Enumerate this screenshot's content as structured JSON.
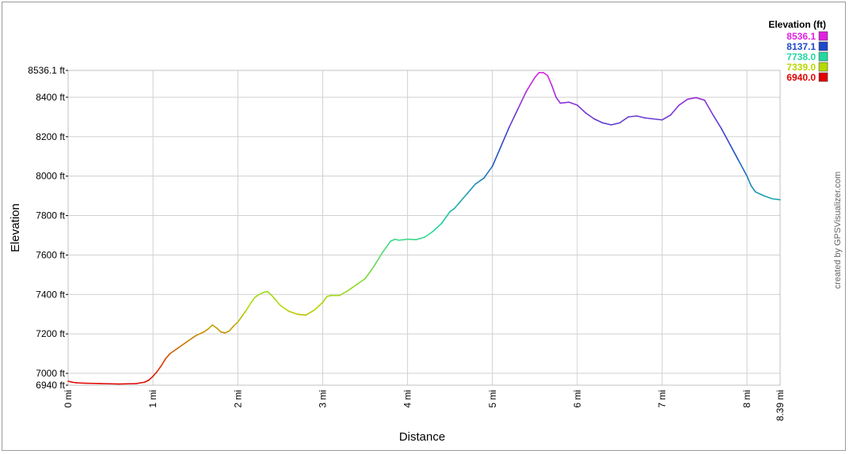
{
  "chart_data": {
    "type": "line",
    "xlabel": "Distance",
    "ylabel": "Elevation",
    "xlim": [
      0,
      8.39
    ],
    "ylim": [
      6940,
      8536.1
    ],
    "x_ticks": [
      0,
      1,
      2,
      3,
      4,
      5,
      6,
      7,
      8,
      8.39
    ],
    "x_tick_labels": [
      "0 mi",
      "1 mi",
      "2 mi",
      "3 mi",
      "4 mi",
      "5 mi",
      "6 mi",
      "7 mi",
      "8 mi",
      "8.39 mi"
    ],
    "y_ticks": [
      6940,
      7000,
      7200,
      7400,
      7600,
      7800,
      8000,
      8200,
      8400,
      8536.1
    ],
    "y_tick_labels": [
      "6940 ft",
      "7000 ft",
      "7200 ft",
      "7400 ft",
      "7600 ft",
      "7800 ft",
      "8000 ft",
      "8200 ft",
      "8400 ft",
      "8536.1 ft"
    ],
    "grid": true,
    "legend": {
      "title": "Elevation (ft)",
      "placement": "top-right",
      "entries": [
        {
          "label": "8536.1",
          "color": "#e020e0"
        },
        {
          "label": "8137.1",
          "color": "#1c49c9"
        },
        {
          "label": "7738.0",
          "color": "#22d8a0"
        },
        {
          "label": "7339.0",
          "color": "#b8d800"
        },
        {
          "label": "6940.0",
          "color": "#e00000"
        }
      ]
    },
    "credit": "created by GPSVisualizer.com",
    "series": [
      {
        "x": [
          0,
          0.05,
          0.1,
          0.2,
          0.3,
          0.4,
          0.5,
          0.6,
          0.7,
          0.8,
          0.9,
          0.95,
          1.0,
          1.05,
          1.1,
          1.15,
          1.2,
          1.3,
          1.4,
          1.5,
          1.55,
          1.6,
          1.65,
          1.7,
          1.75,
          1.8,
          1.85,
          1.9,
          1.95,
          2.0,
          2.05,
          2.1,
          2.15,
          2.2,
          2.25,
          2.3,
          2.35,
          2.4,
          2.45,
          2.5,
          2.6,
          2.7,
          2.8,
          2.9,
          3.0,
          3.05,
          3.1,
          3.2,
          3.3,
          3.4,
          3.5,
          3.6,
          3.7,
          3.75,
          3.8,
          3.85,
          3.9,
          4.0,
          4.1,
          4.2,
          4.3,
          4.4,
          4.5,
          4.55,
          4.6,
          4.7,
          4.8,
          4.9,
          5.0,
          5.1,
          5.2,
          5.3,
          5.4,
          5.5,
          5.55,
          5.6,
          5.65,
          5.7,
          5.75,
          5.8,
          5.9,
          6.0,
          6.1,
          6.2,
          6.3,
          6.4,
          6.5,
          6.6,
          6.7,
          6.8,
          6.9,
          7.0,
          7.1,
          7.2,
          7.3,
          7.4,
          7.5,
          7.6,
          7.7,
          7.8,
          7.9,
          8.0,
          8.05,
          8.1,
          8.2,
          8.3,
          8.39
        ],
        "y": [
          6960,
          6955,
          6952,
          6950,
          6949,
          6948,
          6947,
          6946,
          6947,
          6948,
          6955,
          6965,
          6985,
          7010,
          7040,
          7075,
          7100,
          7130,
          7160,
          7190,
          7200,
          7210,
          7225,
          7245,
          7230,
          7210,
          7205,
          7215,
          7240,
          7260,
          7290,
          7320,
          7355,
          7385,
          7400,
          7410,
          7415,
          7395,
          7370,
          7345,
          7315,
          7300,
          7295,
          7320,
          7360,
          7390,
          7395,
          7395,
          7420,
          7450,
          7480,
          7540,
          7610,
          7640,
          7670,
          7680,
          7675,
          7680,
          7678,
          7690,
          7720,
          7760,
          7820,
          7835,
          7860,
          7910,
          7960,
          7990,
          8050,
          8150,
          8250,
          8340,
          8430,
          8500,
          8525,
          8525,
          8510,
          8460,
          8400,
          8370,
          8375,
          8360,
          8320,
          8290,
          8270,
          8260,
          8270,
          8300,
          8305,
          8295,
          8290,
          8285,
          8310,
          8360,
          8390,
          8398,
          8385,
          8310,
          8240,
          8160,
          8080,
          8000,
          7950,
          7920,
          7900,
          7885,
          7880
        ]
      }
    ]
  }
}
